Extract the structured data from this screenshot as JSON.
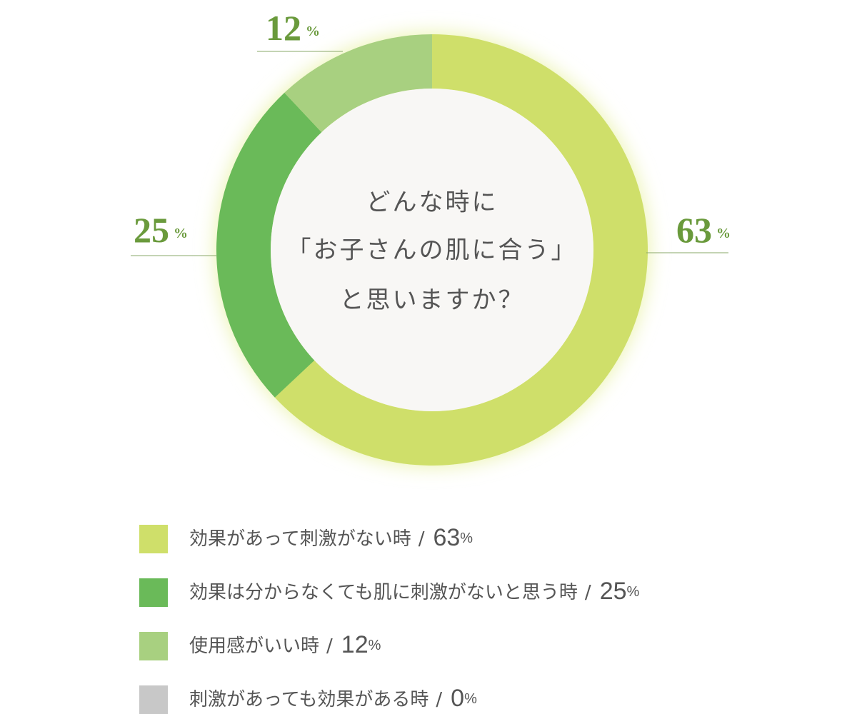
{
  "chart_data": {
    "type": "donut",
    "title_lines": [
      "どんな時に",
      "「お子さんの肌に合う」",
      "と思いますか？"
    ],
    "categories": [
      "効果があって刺激がない時",
      "効果は分からなくても肌に刺激がないと思う時",
      "使用感がいい時",
      "刺激があっても効果がある時"
    ],
    "values": [
      63,
      25,
      12,
      0
    ],
    "colors": [
      "#cfdf6a",
      "#6aba59",
      "#a8d080",
      "#c8c8c8"
    ],
    "unit": "%",
    "legend_separator": "/"
  }
}
